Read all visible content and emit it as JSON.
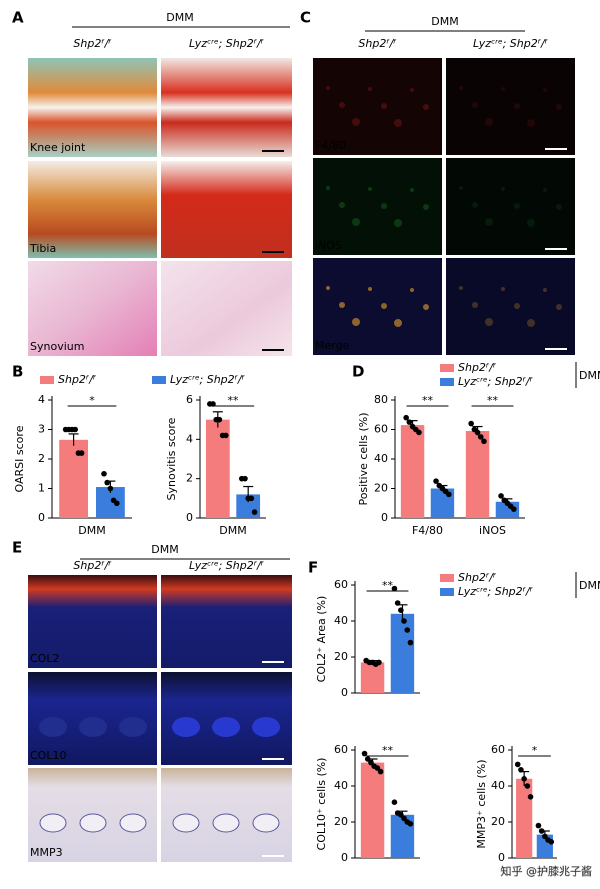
{
  "panels": {
    "A": {
      "label": "A",
      "header": "DMM",
      "columns": [
        "Shp2ᶠ/ᶠ",
        "Lyzᶜʳᵉ; Shp2ᶠ/ᶠ"
      ],
      "rows": [
        "Knee joint",
        "Tibia",
        "Synovium"
      ]
    },
    "B": {
      "label": "B"
    },
    "C": {
      "label": "C",
      "header": "DMM",
      "columns": [
        "Shp2ᶠ/ᶠ",
        "Lyzᶜʳᵉ; Shp2ᶠ/ᶠ"
      ],
      "rows": [
        "F4/80",
        "iNOS",
        "Merge"
      ]
    },
    "D": {
      "label": "D"
    },
    "E": {
      "label": "E",
      "header": "DMM",
      "columns": [
        "Shp2ᶠ/ᶠ",
        "Lyzᶜʳᵉ; Shp2ᶠ/ᶠ"
      ],
      "rows": [
        "COL2",
        "COL10",
        "MMP3"
      ]
    },
    "F": {
      "label": "F"
    }
  },
  "watermark": "知乎 @护膝兆子酱",
  "chart_data": [
    {
      "type": "bar",
      "ylabel": "OARSI score",
      "categories": [
        "DMM"
      ],
      "ylim": [
        0,
        4
      ],
      "yticks": [
        0,
        1,
        2,
        3,
        4
      ],
      "series": [
        {
          "name": "Shp2ᶠ/ᶠ",
          "color": "#f47c7c",
          "values": [
            2.65
          ],
          "errors": [
            0.2
          ],
          "points": [
            [
              3,
              3,
              3,
              3,
              2.2,
              2.2
            ]
          ]
        },
        {
          "name": "Lyzᶜʳᵉ; Shp2ᶠ/ᶠ",
          "color": "#3b7ddd",
          "values": [
            1.05
          ],
          "errors": [
            0.2
          ],
          "points": [
            [
              1.5,
              1.2,
              1,
              0.6,
              0.5
            ]
          ]
        }
      ],
      "annotations": [
        "*"
      ]
    },
    {
      "type": "bar",
      "ylabel": "Synovitis score",
      "categories": [
        "DMM"
      ],
      "ylim": [
        0,
        6
      ],
      "yticks": [
        0,
        2,
        4,
        6
      ],
      "series": [
        {
          "color": "#f47c7c",
          "values": [
            5.0
          ],
          "errors": [
            0.4
          ],
          "points": [
            [
              5.8,
              5.8,
              5,
              5,
              4.2,
              4.2
            ]
          ]
        },
        {
          "color": "#3b7ddd",
          "values": [
            1.2
          ],
          "errors": [
            0.4
          ],
          "points": [
            [
              2,
              2,
              1,
              1,
              0.3
            ]
          ]
        }
      ],
      "annotations": [
        "**"
      ]
    },
    {
      "type": "bar",
      "ylabel": "Positive cells (%)",
      "categories": [
        "F4/80",
        "iNOS"
      ],
      "ylim": [
        0,
        80
      ],
      "yticks": [
        0,
        20,
        40,
        60,
        80
      ],
      "legend_title": "DMM",
      "series": [
        {
          "name": "Shp2ᶠ/ᶠ",
          "color": "#f47c7c",
          "values": [
            63,
            59
          ],
          "errors": [
            3,
            3
          ],
          "points": [
            [
              68,
              65,
              62,
              60,
              58
            ],
            [
              64,
              60,
              58,
              55,
              52
            ]
          ]
        },
        {
          "name": "Lyzᶜʳᵉ; Shp2ᶠ/ᶠ",
          "color": "#3b7ddd",
          "values": [
            20,
            11
          ],
          "errors": [
            2,
            2
          ],
          "points": [
            [
              25,
              22,
              20,
              18,
              16
            ],
            [
              15,
              12,
              10,
              8,
              6
            ]
          ]
        }
      ],
      "annotations": [
        "**",
        "**"
      ]
    },
    {
      "type": "bar",
      "ylabel": "COL2⁺ Area (%)",
      "categories": [
        null
      ],
      "ylim": [
        0,
        60
      ],
      "yticks": [
        0,
        20,
        40,
        60
      ],
      "legend_title": "DMM",
      "series": [
        {
          "name": "Shp2ᶠ/ᶠ",
          "color": "#f47c7c",
          "values": [
            17
          ],
          "errors": [
            1
          ],
          "points": [
            [
              18,
              17,
              17,
              16,
              17
            ]
          ]
        },
        {
          "name": "Lyzᶜʳᵉ; Shp2ᶠ/ᶠ",
          "color": "#3b7ddd",
          "values": [
            44
          ],
          "errors": [
            5
          ],
          "points": [
            [
              58,
              50,
              46,
              40,
              35,
              28
            ]
          ]
        }
      ],
      "annotations": [
        "**"
      ]
    },
    {
      "type": "bar",
      "ylabel": "COL10⁺ cells (%)",
      "categories": [
        null
      ],
      "ylim": [
        0,
        60
      ],
      "yticks": [
        0,
        20,
        40,
        60
      ],
      "series": [
        {
          "color": "#f47c7c",
          "values": [
            53
          ],
          "errors": [
            2
          ],
          "points": [
            [
              58,
              55,
              53,
              51,
              50,
              48
            ]
          ]
        },
        {
          "color": "#3b7ddd",
          "values": [
            24
          ],
          "errors": [
            2
          ],
          "points": [
            [
              31,
              25,
              24,
              22,
              20,
              19
            ]
          ]
        }
      ],
      "annotations": [
        "**"
      ]
    },
    {
      "type": "bar",
      "ylabel": "MMP3⁺ cells (%)",
      "categories": [
        null
      ],
      "ylim": [
        0,
        60
      ],
      "yticks": [
        0,
        20,
        40,
        60
      ],
      "series": [
        {
          "color": "#f47c7c",
          "values": [
            44
          ],
          "errors": [
            4
          ],
          "points": [
            [
              52,
              49,
              44,
              40,
              34
            ]
          ]
        },
        {
          "color": "#3b7ddd",
          "values": [
            13
          ],
          "errors": [
            2
          ],
          "points": [
            [
              18,
              15,
              12,
              10,
              9
            ]
          ]
        }
      ],
      "annotations": [
        "*"
      ]
    }
  ]
}
